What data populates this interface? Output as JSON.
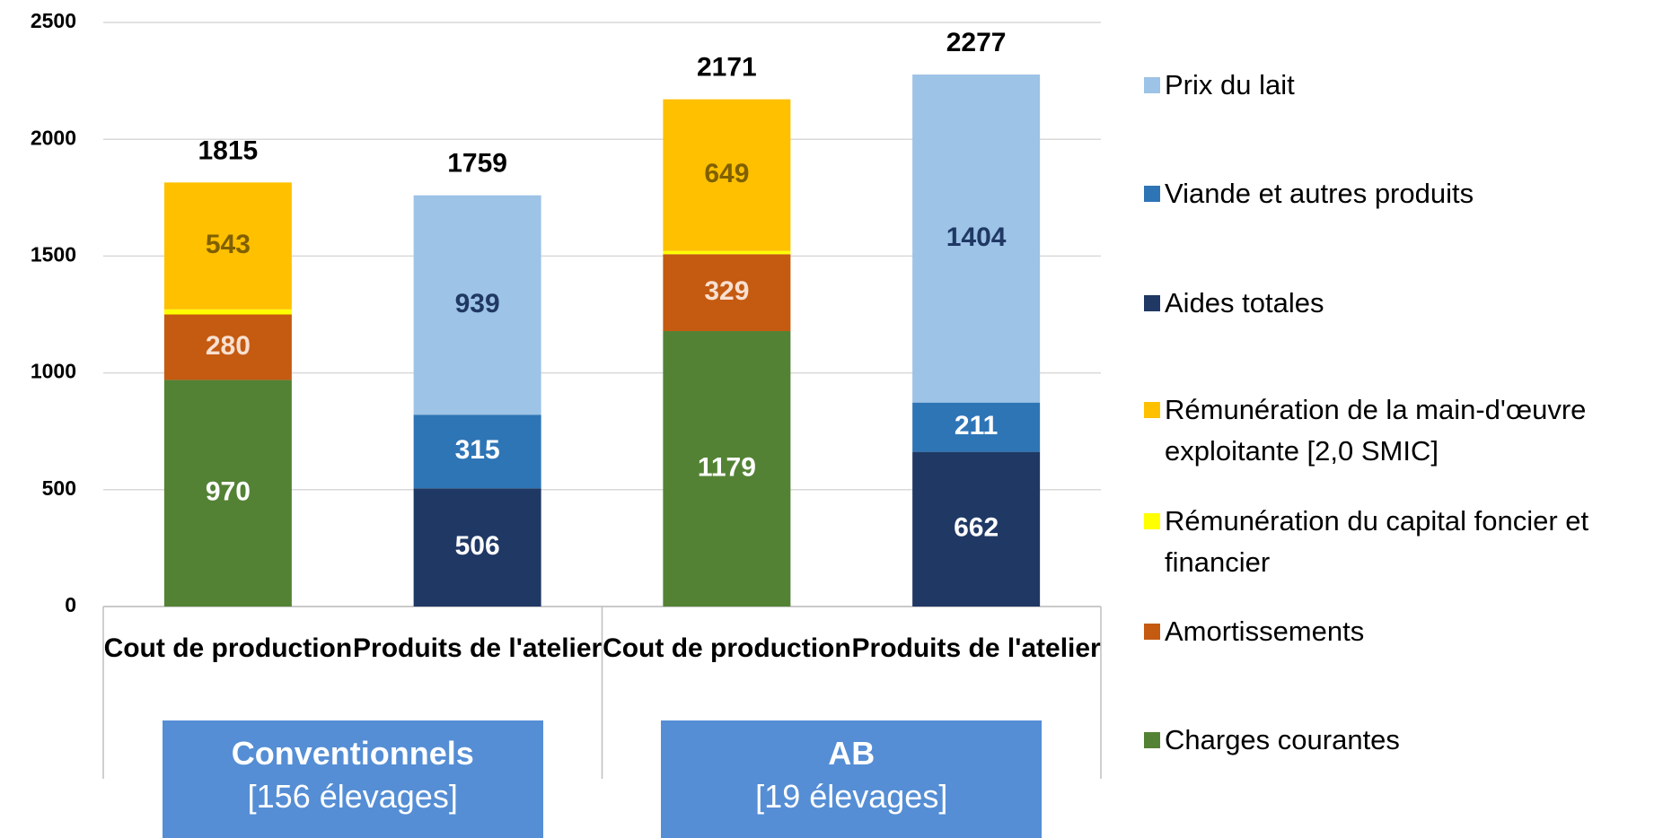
{
  "chart_data": {
    "type": "stacked_bar",
    "categories": [
      "Cout de production",
      "Produits de l'atelier",
      "Cout de production",
      "Produits de l'atelier"
    ],
    "groups": [
      {
        "name": "Conventionnels",
        "note": "[156 élevages]"
      },
      {
        "name": "AB",
        "note": "[19 élevages]"
      }
    ],
    "series": [
      {
        "name": "Charges courantes",
        "color": "#548235",
        "label_color": "#ffffff",
        "values": [
          970,
          null,
          1179,
          null
        ]
      },
      {
        "name": "Amortissements",
        "color": "#c55a11",
        "label_color": "#f8e0d0",
        "values": [
          280,
          null,
          329,
          null
        ]
      },
      {
        "name": "Rémunération du capital foncier et financier",
        "color": "#ffff00",
        "data_labels": false,
        "values": [
          22,
          null,
          14,
          null
        ]
      },
      {
        "name": "Rémunération de la main-d'œuvre exploitante [2,0 SMIC]",
        "color": "#ffc000",
        "label_color": "#7f6000",
        "values": [
          543,
          null,
          649,
          null
        ]
      },
      {
        "name": "Aides totales",
        "color": "#203864",
        "label_color": "#ffffff",
        "values": [
          null,
          506,
          null,
          662
        ]
      },
      {
        "name": "Viande et autres produits",
        "color": "#2e75b6",
        "label_color": "#ffffff",
        "values": [
          null,
          315,
          null,
          211
        ]
      },
      {
        "name": "Prix du lait",
        "color": "#9dc3e6",
        "label_color": "#1f3864",
        "values": [
          null,
          939,
          null,
          1404
        ]
      }
    ],
    "totals": [
      1815,
      1759,
      2171,
      2277
    ],
    "ylim": [
      0,
      2500
    ],
    "yticks": [
      0,
      500,
      1000,
      1500,
      2000,
      2500
    ],
    "grid": true
  }
}
